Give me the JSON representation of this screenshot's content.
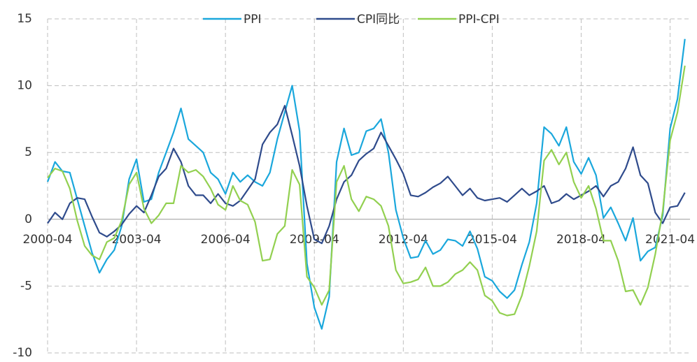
{
  "chart_data": {
    "type": "line",
    "categories": [
      "2000-04",
      null,
      null,
      null,
      null,
      null,
      null,
      null,
      null,
      null,
      null,
      null,
      "2003-04",
      null,
      null,
      null,
      null,
      null,
      null,
      null,
      null,
      null,
      null,
      null,
      "2006-04",
      null,
      null,
      null,
      null,
      null,
      null,
      null,
      null,
      null,
      null,
      null,
      "2009-04",
      null,
      null,
      null,
      null,
      null,
      null,
      null,
      null,
      null,
      null,
      null,
      "2012-04",
      null,
      null,
      null,
      null,
      null,
      null,
      null,
      null,
      null,
      null,
      null,
      "2015-04",
      null,
      null,
      null,
      null,
      null,
      null,
      null,
      null,
      null,
      null,
      null,
      "2018-04",
      null,
      null,
      null,
      null,
      null,
      null,
      null,
      null,
      null,
      null,
      null,
      "2021-04",
      null,
      null
    ],
    "series": [
      {
        "name": "PPI",
        "color": "#1aa7dc",
        "values": [
          2.8,
          4.3,
          3.6,
          3.5,
          1.5,
          -0.5,
          -2.5,
          -4.0,
          -3.0,
          -2.3,
          -0.5,
          3.0,
          4.5,
          1.3,
          1.5,
          3.5,
          5.0,
          6.5,
          8.3,
          6.0,
          5.5,
          5.0,
          3.5,
          3.0,
          1.9,
          3.5,
          2.8,
          3.3,
          2.8,
          2.5,
          3.5,
          6.0,
          8.0,
          10.0,
          6.6,
          -3.3,
          -6.6,
          -8.2,
          -5.8,
          4.3,
          6.8,
          4.8,
          5.0,
          6.6,
          6.8,
          7.5,
          5.0,
          0.7,
          -1.4,
          -2.9,
          -2.8,
          -1.6,
          -2.6,
          -2.3,
          -1.5,
          -1.6,
          -2.0,
          -0.9,
          -2.2,
          -4.3,
          -4.6,
          -5.4,
          -5.9,
          -5.3,
          -3.4,
          -1.7,
          1.2,
          6.9,
          6.4,
          5.5,
          6.9,
          4.3,
          3.4,
          4.6,
          3.3,
          0.1,
          0.9,
          -0.3,
          -1.6,
          0.1,
          -3.1,
          -2.4,
          -2.1,
          0.3,
          6.8,
          9.0,
          13.5
        ]
      },
      {
        "name": "CPI同比",
        "color": "#2f4b8c",
        "values": [
          -0.3,
          0.5,
          0.0,
          1.2,
          1.6,
          1.5,
          0.2,
          -1.0,
          -1.3,
          -0.9,
          -0.4,
          0.4,
          1.0,
          0.5,
          1.8,
          3.2,
          3.8,
          5.3,
          4.3,
          2.5,
          1.8,
          1.8,
          1.2,
          1.9,
          1.2,
          1.0,
          1.4,
          2.2,
          3.0,
          5.6,
          6.5,
          7.1,
          8.5,
          6.3,
          4.0,
          1.0,
          -1.5,
          -1.8,
          -0.5,
          1.5,
          2.8,
          3.3,
          4.4,
          4.9,
          5.3,
          6.5,
          5.5,
          4.5,
          3.4,
          1.8,
          1.7,
          2.0,
          2.4,
          2.7,
          3.2,
          2.5,
          1.8,
          2.3,
          1.6,
          1.4,
          1.5,
          1.6,
          1.3,
          1.8,
          2.3,
          1.8,
          2.1,
          2.5,
          1.2,
          1.4,
          1.9,
          1.5,
          1.8,
          2.1,
          2.5,
          1.7,
          2.5,
          2.8,
          3.8,
          5.4,
          3.3,
          2.7,
          0.5,
          -0.3,
          0.9,
          1.0,
          2.0
        ]
      },
      {
        "name": "PPI-CPI",
        "color": "#92d050",
        "values": [
          3.1,
          3.8,
          3.6,
          2.3,
          -0.1,
          -2.0,
          -2.7,
          -3.0,
          -1.7,
          -1.4,
          -0.1,
          2.6,
          3.5,
          0.8,
          -0.3,
          0.3,
          1.2,
          1.2,
          4.0,
          3.5,
          3.7,
          3.2,
          2.3,
          1.1,
          0.7,
          2.5,
          1.4,
          1.1,
          -0.2,
          -3.1,
          -3.0,
          -1.1,
          -0.5,
          3.7,
          2.6,
          -4.3,
          -5.1,
          -6.4,
          -5.3,
          2.8,
          4.0,
          1.5,
          0.6,
          1.7,
          1.5,
          1.0,
          -0.5,
          -3.8,
          -4.8,
          -4.7,
          -4.5,
          -3.6,
          -5.0,
          -5.0,
          -4.7,
          -4.1,
          -3.8,
          -3.2,
          -3.8,
          -5.7,
          -6.1,
          -7.0,
          -7.2,
          -7.1,
          -5.7,
          -3.5,
          -0.9,
          4.4,
          5.2,
          4.1,
          5.0,
          2.8,
          1.6,
          2.5,
          0.8,
          -1.6,
          -1.6,
          -3.1,
          -5.4,
          -5.3,
          -6.4,
          -5.1,
          -2.6,
          0.6,
          5.9,
          8.0,
          11.5
        ]
      }
    ],
    "ylim": [
      -10,
      15
    ],
    "yticks": [
      -10,
      -5,
      0,
      5,
      10,
      15
    ],
    "grid": true,
    "legend": "top"
  }
}
